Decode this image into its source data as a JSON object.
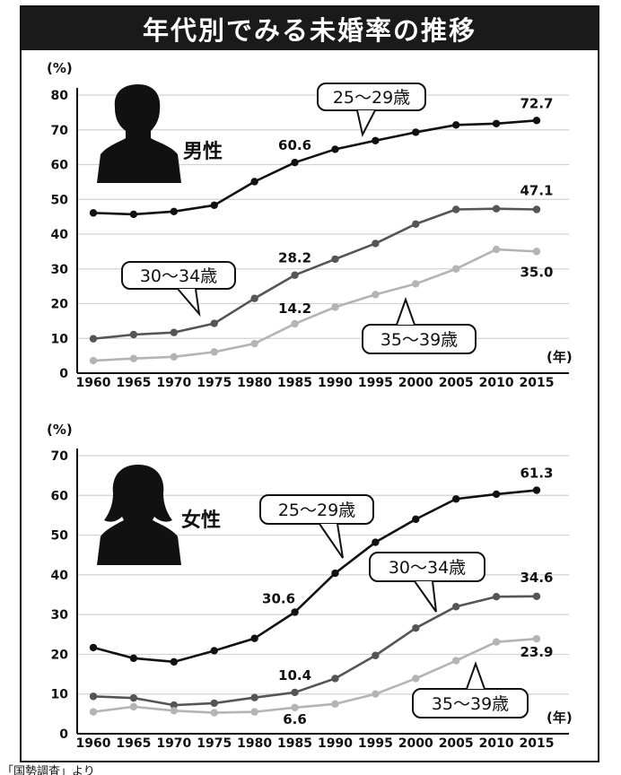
{
  "title": "年代別でみる未婚率の推移",
  "footer_note": "「国勢調査」より",
  "colors": {
    "series_25_29": "#111111",
    "series_30_34": "#555555",
    "series_35_39": "#b4b4b4",
    "grid": "#d2d2d2",
    "title_bg": "#1a1a1a"
  },
  "chart_data": [
    {
      "type": "line",
      "gender_label": "男性",
      "gender_icon": "male-silhouette-icon",
      "y_unit": "(%)",
      "x_unit": "(年)",
      "ylim": [
        0,
        80
      ],
      "y_ticks": [
        0,
        10,
        20,
        30,
        40,
        50,
        60,
        70,
        80
      ],
      "grid": true,
      "x": [
        1960,
        1965,
        1970,
        1975,
        1980,
        1985,
        1990,
        1995,
        2000,
        2005,
        2010,
        2015
      ],
      "series": [
        {
          "name": "25〜29歳",
          "values": [
            46.1,
            45.7,
            46.5,
            48.3,
            55.1,
            60.6,
            64.4,
            66.9,
            69.3,
            71.4,
            71.8,
            72.7
          ]
        },
        {
          "name": "30〜34歳",
          "values": [
            9.9,
            11.1,
            11.7,
            14.3,
            21.5,
            28.2,
            32.8,
            37.3,
            42.9,
            47.1,
            47.3,
            47.1
          ]
        },
        {
          "name": "35〜39歳",
          "values": [
            3.6,
            4.2,
            4.7,
            6.1,
            8.5,
            14.2,
            19.0,
            22.6,
            25.7,
            30.0,
            35.6,
            35.0
          ]
        }
      ],
      "annotations": [
        {
          "series": 0,
          "index": 5,
          "text": "60.6"
        },
        {
          "series": 0,
          "index": 11,
          "text": "72.7"
        },
        {
          "series": 1,
          "index": 5,
          "text": "28.2"
        },
        {
          "series": 1,
          "index": 11,
          "text": "47.1"
        },
        {
          "series": 2,
          "index": 5,
          "text": "14.2"
        },
        {
          "series": 2,
          "index": 11,
          "text": "35.0"
        }
      ]
    },
    {
      "type": "line",
      "gender_label": "女性",
      "gender_icon": "female-silhouette-icon",
      "y_unit": "(%)",
      "x_unit": "(年)",
      "ylim": [
        0,
        70
      ],
      "y_ticks": [
        0,
        10,
        20,
        30,
        40,
        50,
        60,
        70
      ],
      "grid": true,
      "x": [
        1960,
        1965,
        1970,
        1975,
        1980,
        1985,
        1990,
        1995,
        2000,
        2005,
        2010,
        2015
      ],
      "series": [
        {
          "name": "25〜29歳",
          "values": [
            21.7,
            19.0,
            18.1,
            20.9,
            24.0,
            30.6,
            40.4,
            48.2,
            54.0,
            59.1,
            60.3,
            61.3
          ]
        },
        {
          "name": "30〜34歳",
          "values": [
            9.4,
            9.0,
            7.2,
            7.7,
            9.1,
            10.4,
            13.9,
            19.7,
            26.6,
            32.0,
            34.5,
            34.6
          ]
        },
        {
          "name": "35〜39歳",
          "values": [
            5.5,
            6.8,
            5.8,
            5.3,
            5.5,
            6.6,
            7.5,
            10.0,
            13.9,
            18.4,
            23.1,
            23.9
          ]
        }
      ],
      "annotations": [
        {
          "series": 0,
          "index": 5,
          "text": "30.6"
        },
        {
          "series": 0,
          "index": 11,
          "text": "61.3"
        },
        {
          "series": 1,
          "index": 5,
          "text": "10.4"
        },
        {
          "series": 1,
          "index": 11,
          "text": "34.6"
        },
        {
          "series": 2,
          "index": 5,
          "text": "6.6"
        },
        {
          "series": 2,
          "index": 11,
          "text": "23.9"
        }
      ]
    }
  ]
}
